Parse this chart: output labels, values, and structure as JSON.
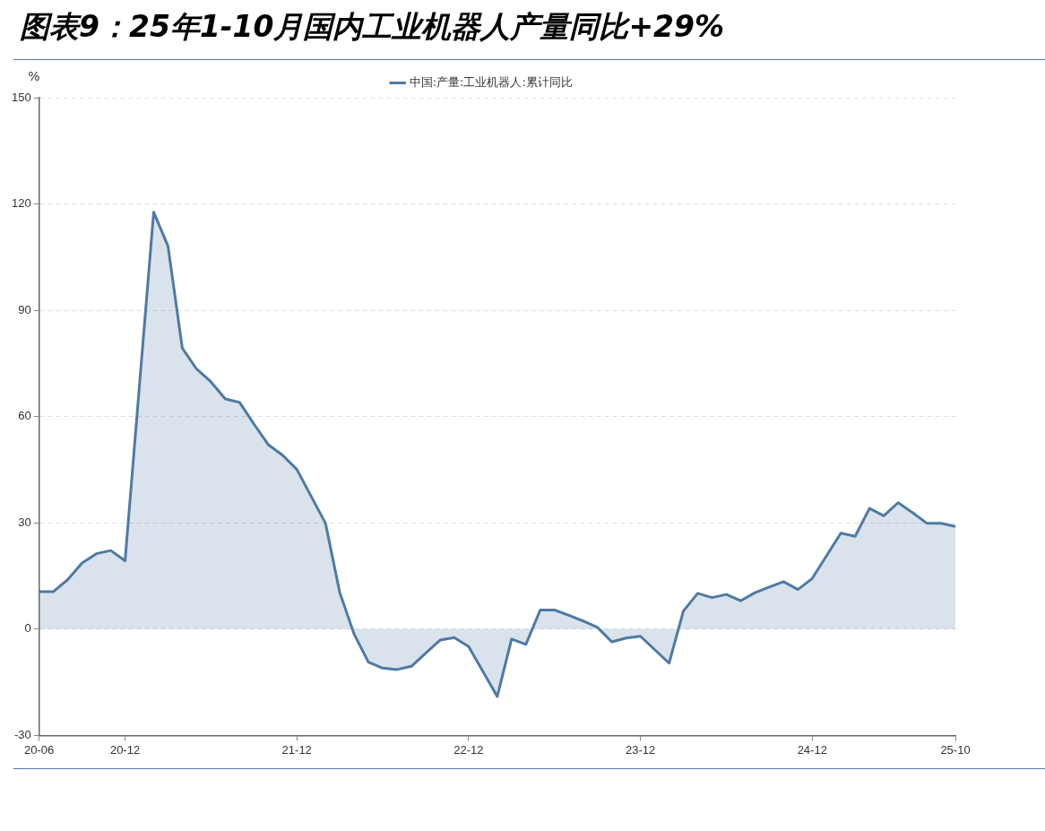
{
  "chart_data": {
    "type": "area",
    "title": "图表9：25年1-10月国内工业机器人产量同比+29%",
    "ylabel": "%",
    "categories": [
      "20-06",
      null,
      null,
      null,
      null,
      null,
      "20-12",
      null,
      null,
      null,
      null,
      null,
      null,
      null,
      null,
      null,
      null,
      null,
      "21-12",
      null,
      null,
      null,
      null,
      null,
      null,
      null,
      null,
      null,
      null,
      null,
      "22-12",
      null,
      null,
      null,
      null,
      null,
      null,
      null,
      null,
      null,
      null,
      null,
      "23-12",
      null,
      null,
      null,
      null,
      null,
      null,
      null,
      null,
      null,
      null,
      null,
      "24-12",
      null,
      null,
      null,
      null,
      null,
      null,
      null,
      null,
      null,
      "25-10"
    ],
    "series": [
      {
        "name": "中国:产量:工业机器人:累计同比",
        "color": "#4e7aa4",
        "values": [
          10.6,
          10.6,
          14.0,
          18.7,
          21.3,
          22.2,
          19.3,
          null,
          117.7,
          108.1,
          79.3,
          73.4,
          69.8,
          65.0,
          64.0,
          57.9,
          52.1,
          49.1,
          45.1,
          null,
          29.9,
          10.3,
          -1.4,
          -9.3,
          -11.0,
          -11.4,
          -10.5,
          -6.8,
          -3.1,
          -2.4,
          -4.9,
          null,
          -19.0,
          -2.8,
          -4.3,
          5.4,
          5.4,
          3.9,
          2.3,
          0.5,
          -3.6,
          -2.5,
          -2.0,
          null,
          -9.6,
          5.1,
          10.1,
          8.9,
          9.8,
          8.0,
          10.3,
          11.9,
          13.4,
          11.2,
          14.3,
          null,
          27.1,
          26.2,
          34.1,
          32.0,
          35.7,
          32.9,
          29.9,
          29.9,
          29.0
        ]
      }
    ],
    "ylim": [
      -30,
      150
    ],
    "yticks": [
      -30,
      0,
      30,
      60,
      90,
      120,
      150
    ],
    "grid": "y",
    "legend": "top",
    "marker": "none",
    "line_style": "solid"
  }
}
